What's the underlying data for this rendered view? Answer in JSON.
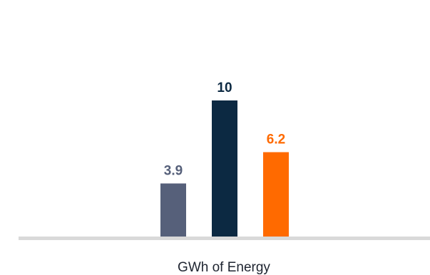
{
  "chart_data": {
    "type": "bar",
    "categories": [
      "",
      "",
      ""
    ],
    "values": [
      3.9,
      10,
      6.2
    ],
    "value_labels": [
      "3.9",
      "10",
      "6.2"
    ],
    "colors": [
      "#56607a",
      "#0c2942",
      "#ff6a00"
    ],
    "baseline_color": "#d9d9d9",
    "xlabel": "GWh of Energy",
    "ylabel": "",
    "ylim": [
      0,
      10
    ],
    "grid": false,
    "legend": "none"
  }
}
